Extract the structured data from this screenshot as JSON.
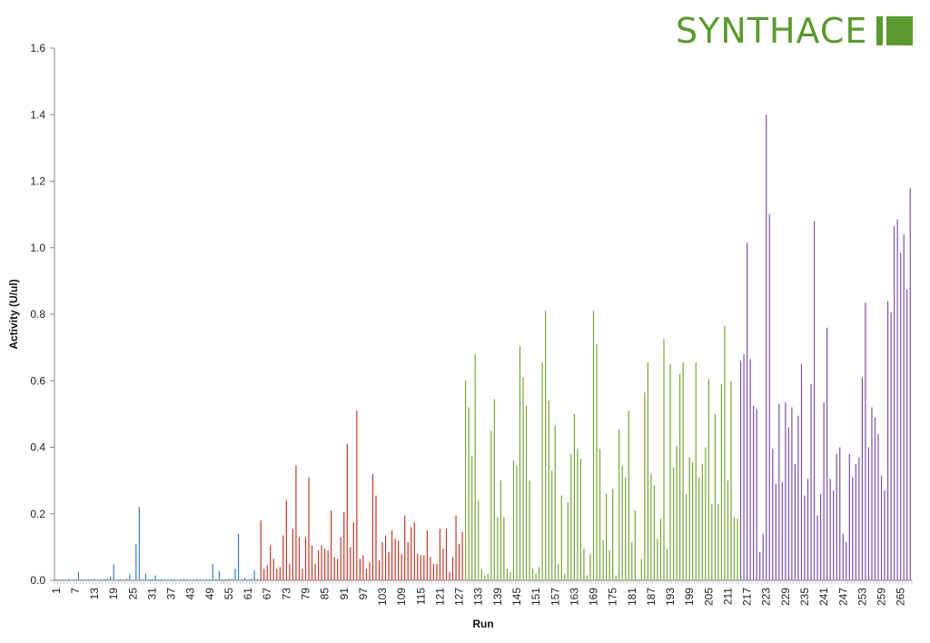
{
  "logo": {
    "text": "SYNTHACE",
    "color": "#5b9a2e"
  },
  "chart_data": {
    "type": "bar",
    "xlabel": "Run",
    "ylabel": "Activity (U/ul)",
    "ylim": [
      0,
      1.6
    ],
    "yticks": [
      0.0,
      0.2,
      0.4,
      0.6,
      0.8,
      1.0,
      1.2,
      1.4,
      1.6
    ],
    "ytick_labels": [
      "0.0",
      "0.2",
      "0.4",
      "0.6",
      "0.8",
      "1.0",
      "1.2",
      "1.4",
      "1.6"
    ],
    "xticks": [
      1,
      7,
      13,
      19,
      25,
      31,
      37,
      43,
      49,
      55,
      61,
      67,
      73,
      79,
      85,
      91,
      97,
      103,
      109,
      115,
      121,
      127,
      133,
      139,
      145,
      151,
      157,
      163,
      169,
      175,
      181,
      187,
      193,
      199,
      205,
      211,
      217,
      223,
      229,
      235,
      241,
      247,
      253,
      259,
      265
    ],
    "grid": false,
    "legend": "none",
    "series_colors": [
      "#3a7fbf",
      "#c0392b",
      "#77a33a",
      "#7a52a5",
      "#2aa2bd"
    ],
    "x": [
      1,
      2,
      3,
      4,
      5,
      6,
      7,
      8,
      9,
      10,
      11,
      12,
      13,
      14,
      15,
      16,
      17,
      18,
      19,
      20,
      21,
      22,
      23,
      24,
      25,
      26,
      27,
      28,
      29,
      30,
      31,
      32,
      33,
      34,
      35,
      36,
      37,
      38,
      39,
      40,
      41,
      42,
      43,
      44,
      45,
      46,
      47,
      48,
      49,
      50,
      51,
      52,
      53,
      54,
      55,
      56,
      57,
      58,
      59,
      60,
      61,
      62,
      63,
      64,
      65,
      66,
      67,
      68,
      69,
      70,
      71,
      72,
      73,
      74,
      75,
      76,
      77,
      78,
      79,
      80,
      81,
      82,
      83,
      84,
      85,
      86,
      87,
      88,
      89,
      90,
      91,
      92,
      93,
      94,
      95,
      96,
      97,
      98,
      99,
      100,
      101,
      102,
      103,
      104,
      105,
      106,
      107,
      108,
      109,
      110,
      111,
      112,
      113,
      114,
      115,
      116,
      117,
      118,
      119,
      120,
      121,
      122,
      123,
      124,
      125,
      126,
      127,
      128,
      129,
      130,
      131,
      132,
      133,
      134,
      135,
      136,
      137,
      138,
      139,
      140,
      141,
      142,
      143,
      144,
      145,
      146,
      147,
      148,
      149,
      150,
      151,
      152,
      153,
      154,
      155,
      156,
      157,
      158,
      159,
      160,
      161,
      162,
      163,
      164,
      165,
      166,
      167,
      168,
      169,
      170,
      171,
      172,
      173,
      174,
      175,
      176,
      177,
      178,
      179,
      180,
      181,
      182,
      183,
      184,
      185,
      186,
      187,
      188,
      189,
      190,
      191,
      192,
      193,
      194,
      195,
      196,
      197,
      198,
      199,
      200,
      201,
      202,
      203,
      204,
      205,
      206,
      207,
      208,
      209,
      210,
      211,
      212,
      213,
      214,
      215,
      216,
      217,
      218,
      219,
      220,
      221,
      222,
      223,
      224,
      225,
      226,
      227,
      228,
      229,
      230,
      231,
      232,
      233,
      234,
      235,
      236,
      237,
      238,
      239,
      240,
      241,
      242,
      243,
      244,
      245,
      246,
      247,
      248,
      249,
      250,
      251,
      252,
      253,
      254,
      255,
      256,
      257,
      258,
      259,
      260,
      261,
      262,
      263,
      264,
      265,
      266,
      267,
      268
    ],
    "groups": [
      0,
      0,
      0,
      0,
      0,
      0,
      0,
      0,
      0,
      0,
      0,
      0,
      0,
      0,
      0,
      0,
      0,
      0,
      0,
      0,
      0,
      0,
      0,
      0,
      0,
      0,
      0,
      0,
      0,
      0,
      0,
      0,
      0,
      0,
      0,
      0,
      0,
      0,
      0,
      0,
      0,
      0,
      0,
      0,
      0,
      0,
      0,
      0,
      0,
      0,
      0,
      0,
      0,
      0,
      0,
      0,
      0,
      0,
      0,
      0,
      0,
      0,
      0,
      0,
      1,
      1,
      1,
      1,
      1,
      1,
      1,
      1,
      1,
      1,
      1,
      1,
      1,
      1,
      1,
      1,
      1,
      1,
      1,
      1,
      1,
      1,
      1,
      1,
      1,
      1,
      1,
      1,
      1,
      1,
      1,
      1,
      1,
      1,
      1,
      1,
      1,
      1,
      1,
      1,
      1,
      1,
      1,
      1,
      1,
      1,
      1,
      1,
      1,
      1,
      1,
      1,
      1,
      1,
      1,
      1,
      1,
      1,
      1,
      1,
      1,
      1,
      1,
      1,
      2,
      2,
      2,
      2,
      2,
      2,
      2,
      2,
      2,
      2,
      2,
      2,
      2,
      2,
      2,
      2,
      2,
      2,
      2,
      2,
      2,
      2,
      2,
      2,
      2,
      2,
      2,
      2,
      2,
      2,
      2,
      2,
      2,
      2,
      2,
      2,
      2,
      2,
      2,
      2,
      2,
      2,
      2,
      2,
      2,
      2,
      2,
      2,
      2,
      2,
      2,
      2,
      2,
      2,
      2,
      2,
      2,
      2,
      2,
      2,
      2,
      2,
      2,
      2,
      2,
      2,
      2,
      2,
      2,
      2,
      2,
      2,
      2,
      2,
      2,
      2,
      2,
      2,
      2,
      2,
      2,
      2,
      2,
      2,
      2,
      2,
      3,
      3,
      3,
      3,
      3,
      3,
      3,
      3,
      3,
      3,
      3,
      3,
      3,
      3,
      3,
      3,
      3,
      3,
      3,
      3,
      3,
      3,
      3,
      3,
      3,
      3,
      3,
      3,
      3,
      3,
      3,
      3,
      3,
      3,
      3,
      3,
      3,
      3,
      3,
      3,
      3,
      3,
      3,
      3,
      3,
      3,
      3,
      3,
      3,
      3,
      3,
      3,
      3,
      3,
      3,
      3,
      4,
      4,
      4,
      4,
      4,
      4,
      4,
      4
    ],
    "values": [
      0.003,
      0.002,
      0.003,
      0.002,
      0.004,
      0.002,
      0.003,
      0.025,
      0.003,
      0.002,
      0.004,
      0.003,
      0.005,
      0.002,
      0.003,
      0.004,
      0.006,
      0.012,
      0.048,
      0.003,
      0.004,
      0.003,
      0.005,
      0.018,
      0.003,
      0.11,
      0.22,
      0.004,
      0.02,
      0.003,
      0.004,
      0.015,
      0.003,
      0.004,
      0.003,
      0.002,
      0.004,
      0.003,
      0.002,
      0.003,
      0.004,
      0.003,
      0.002,
      0.003,
      0.004,
      0.003,
      0.002,
      0.003,
      0.003,
      0.05,
      0.004,
      0.028,
      0.003,
      0.004,
      0.006,
      0.005,
      0.035,
      0.14,
      0.004,
      0.008,
      0.003,
      0.005,
      0.03,
      0.004,
      0.18,
      0.035,
      0.045,
      0.105,
      0.065,
      0.035,
      0.04,
      0.135,
      0.24,
      0.05,
      0.155,
      0.345,
      0.13,
      0.035,
      0.13,
      0.31,
      0.105,
      0.05,
      0.09,
      0.105,
      0.095,
      0.09,
      0.21,
      0.07,
      0.065,
      0.13,
      0.205,
      0.41,
      0.1,
      0.175,
      0.51,
      0.065,
      0.075,
      0.035,
      0.055,
      0.32,
      0.255,
      0.06,
      0.115,
      0.135,
      0.085,
      0.15,
      0.125,
      0.12,
      0.08,
      0.195,
      0.115,
      0.16,
      0.175,
      0.08,
      0.075,
      0.075,
      0.15,
      0.07,
      0.05,
      0.05,
      0.155,
      0.095,
      0.155,
      0.025,
      0.07,
      0.195,
      0.11,
      0.145,
      0.6,
      0.52,
      0.375,
      0.68,
      0.24,
      0.035,
      0.015,
      0.02,
      0.45,
      0.545,
      0.19,
      0.3,
      0.19,
      0.035,
      0.025,
      0.36,
      0.345,
      0.705,
      0.61,
      0.525,
      0.3,
      0.035,
      0.02,
      0.04,
      0.655,
      0.81,
      0.54,
      0.33,
      0.465,
      0.05,
      0.255,
      0.02,
      0.235,
      0.38,
      0.5,
      0.395,
      0.365,
      0.095,
      0.015,
      0.08,
      0.81,
      0.71,
      0.395,
      0.12,
      0.26,
      0.09,
      0.275,
      0.015,
      0.455,
      0.345,
      0.31,
      0.51,
      0.115,
      0.21,
      0.005,
      0.065,
      0.565,
      0.655,
      0.32,
      0.285,
      0.125,
      0.185,
      0.725,
      0.095,
      0.65,
      0.34,
      0.405,
      0.62,
      0.655,
      0.26,
      0.37,
      0.355,
      0.655,
      0.31,
      0.35,
      0.4,
      0.605,
      0.23,
      0.5,
      0.23,
      0.59,
      0.765,
      0.3,
      0.6,
      0.19,
      0.185,
      0.66,
      0.68,
      1.015,
      0.665,
      0.525,
      0.515,
      0.085,
      0.14,
      1.4,
      1.1,
      0.395,
      0.29,
      0.53,
      0.295,
      0.535,
      0.46,
      0.52,
      0.35,
      0.495,
      0.65,
      0.255,
      0.305,
      0.59,
      1.08,
      0.195,
      0.26,
      0.535,
      0.76,
      0.305,
      0.27,
      0.38,
      0.4,
      0.14,
      0.115,
      0.38,
      0.31,
      0.35,
      0.37,
      0.61,
      0.835,
      0.4,
      0.52,
      0.49,
      0.44,
      0.315,
      0.27,
      0.84,
      0.805,
      1.065,
      1.085,
      0.985,
      1.04,
      0.875,
      1.18
    ]
  }
}
